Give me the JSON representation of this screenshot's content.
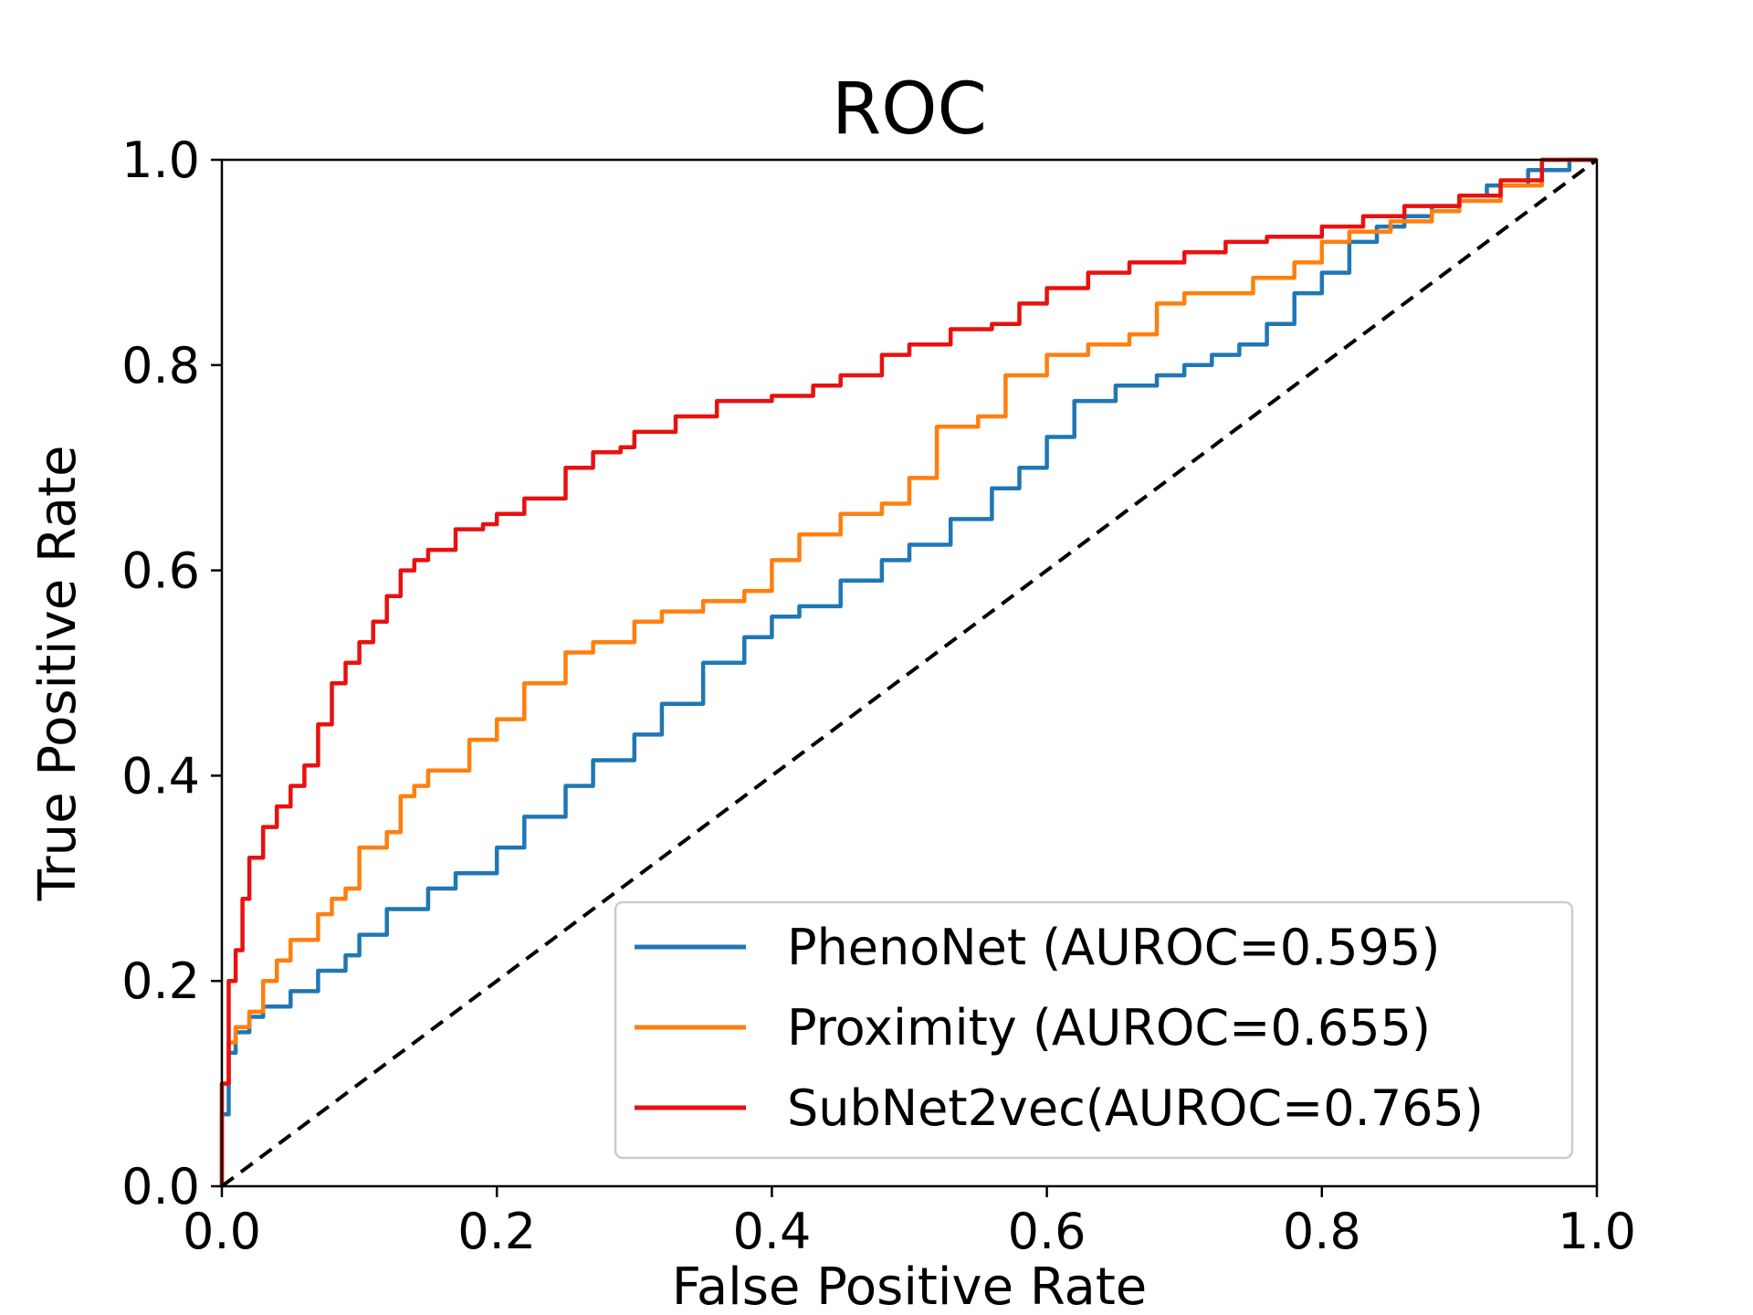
{
  "chart_data": {
    "type": "line",
    "title": "ROC",
    "xlabel": "False Positive Rate",
    "ylabel": "True Positive Rate",
    "xlim": [
      0.0,
      1.0
    ],
    "ylim": [
      0.0,
      1.0
    ],
    "xticks": [
      "0.0",
      "0.2",
      "0.4",
      "0.6",
      "0.8",
      "1.0"
    ],
    "yticks": [
      "0.0",
      "0.2",
      "0.4",
      "0.6",
      "0.8",
      "1.0"
    ],
    "grid": false,
    "legend_position": "lower-right",
    "series": [
      {
        "name": "PhenoNet (AUROC=0.595)",
        "color": "#1f77b4",
        "x": [
          0.0,
          0.005,
          0.01,
          0.02,
          0.03,
          0.05,
          0.07,
          0.09,
          0.1,
          0.12,
          0.15,
          0.17,
          0.2,
          0.22,
          0.25,
          0.27,
          0.3,
          0.32,
          0.35,
          0.38,
          0.4,
          0.42,
          0.45,
          0.48,
          0.5,
          0.53,
          0.56,
          0.58,
          0.6,
          0.62,
          0.65,
          0.68,
          0.7,
          0.72,
          0.74,
          0.76,
          0.78,
          0.8,
          0.82,
          0.84,
          0.86,
          0.88,
          0.9,
          0.92,
          0.95,
          0.98,
          1.0
        ],
        "y": [
          0.0,
          0.07,
          0.13,
          0.15,
          0.165,
          0.175,
          0.19,
          0.21,
          0.225,
          0.245,
          0.27,
          0.29,
          0.305,
          0.33,
          0.36,
          0.39,
          0.415,
          0.44,
          0.47,
          0.51,
          0.535,
          0.555,
          0.565,
          0.59,
          0.61,
          0.625,
          0.65,
          0.68,
          0.7,
          0.73,
          0.765,
          0.78,
          0.79,
          0.8,
          0.81,
          0.82,
          0.84,
          0.87,
          0.89,
          0.92,
          0.935,
          0.945,
          0.955,
          0.965,
          0.975,
          0.99,
          1.0
        ]
      },
      {
        "name": "Proximity (AUROC=0.655)",
        "color": "#ff7f0e",
        "x": [
          0.0,
          0.005,
          0.01,
          0.02,
          0.03,
          0.04,
          0.05,
          0.07,
          0.08,
          0.09,
          0.1,
          0.12,
          0.13,
          0.14,
          0.15,
          0.18,
          0.2,
          0.22,
          0.25,
          0.27,
          0.3,
          0.32,
          0.35,
          0.38,
          0.4,
          0.42,
          0.45,
          0.48,
          0.5,
          0.52,
          0.55,
          0.57,
          0.6,
          0.63,
          0.66,
          0.68,
          0.7,
          0.73,
          0.75,
          0.78,
          0.8,
          0.82,
          0.85,
          0.88,
          0.9,
          0.93,
          0.96,
          1.0
        ],
        "y": [
          0.0,
          0.1,
          0.14,
          0.155,
          0.17,
          0.2,
          0.22,
          0.24,
          0.265,
          0.28,
          0.29,
          0.33,
          0.345,
          0.38,
          0.39,
          0.405,
          0.435,
          0.455,
          0.49,
          0.52,
          0.53,
          0.55,
          0.56,
          0.57,
          0.58,
          0.61,
          0.635,
          0.655,
          0.665,
          0.69,
          0.74,
          0.75,
          0.79,
          0.81,
          0.82,
          0.83,
          0.86,
          0.87,
          0.87,
          0.885,
          0.9,
          0.92,
          0.93,
          0.94,
          0.95,
          0.96,
          0.975,
          1.0
        ]
      },
      {
        "name": "SubNet2vec(AUROC=0.765)",
        "color": "#e8110f",
        "x": [
          0.0,
          0.005,
          0.01,
          0.015,
          0.02,
          0.03,
          0.04,
          0.05,
          0.06,
          0.07,
          0.08,
          0.09,
          0.1,
          0.11,
          0.12,
          0.13,
          0.14,
          0.15,
          0.17,
          0.19,
          0.2,
          0.22,
          0.25,
          0.27,
          0.29,
          0.3,
          0.33,
          0.36,
          0.4,
          0.43,
          0.45,
          0.48,
          0.5,
          0.53,
          0.56,
          0.58,
          0.6,
          0.63,
          0.66,
          0.7,
          0.73,
          0.76,
          0.8,
          0.83,
          0.86,
          0.9,
          0.93,
          0.96,
          1.0
        ],
        "y": [
          0.0,
          0.1,
          0.2,
          0.23,
          0.28,
          0.32,
          0.35,
          0.37,
          0.39,
          0.41,
          0.45,
          0.49,
          0.51,
          0.53,
          0.55,
          0.575,
          0.6,
          0.61,
          0.62,
          0.64,
          0.645,
          0.655,
          0.67,
          0.7,
          0.715,
          0.72,
          0.735,
          0.75,
          0.765,
          0.77,
          0.78,
          0.79,
          0.81,
          0.82,
          0.835,
          0.84,
          0.86,
          0.875,
          0.89,
          0.9,
          0.91,
          0.92,
          0.925,
          0.935,
          0.945,
          0.955,
          0.965,
          0.98,
          1.0
        ]
      }
    ],
    "reference_line": {
      "x": [
        0.0,
        1.0
      ],
      "y": [
        0.0,
        1.0
      ],
      "color": "#000000",
      "style": "dashed"
    }
  }
}
